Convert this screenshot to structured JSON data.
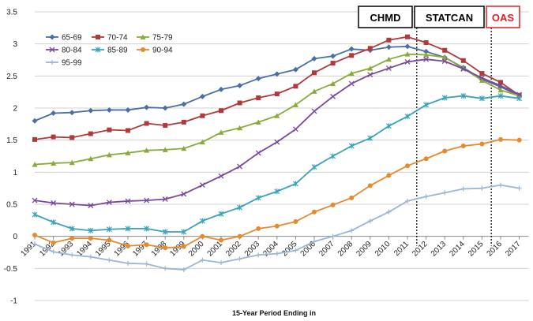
{
  "chart_data": {
    "type": "line",
    "title": "",
    "xlabel": "15-Year Period Ending in",
    "ylabel": "",
    "ylim": [
      -1,
      3.5
    ],
    "yticks": [
      -1,
      -0.5,
      0,
      0.5,
      1,
      1.5,
      2,
      2.5,
      3,
      3.5
    ],
    "ytick_labels": [
      "-1",
      "-0.5",
      "0",
      "0.5",
      "1",
      "1.5",
      "2",
      "2.5",
      "3",
      "3.5"
    ],
    "categories": [
      "1991",
      "1992",
      "1993",
      "1994",
      "1995",
      "1996",
      "1997",
      "1998",
      "1999",
      "2000",
      "2001",
      "2002",
      "2003",
      "2004",
      "2005",
      "2006",
      "2007",
      "2008",
      "2009",
      "2010",
      "2011",
      "2012",
      "2013",
      "2014",
      "2015",
      "2016",
      "2017"
    ],
    "grid": true,
    "legend_position": "top-left",
    "series": [
      {
        "name": "65-69",
        "color": "#4a6fa5",
        "marker": "diamond",
        "values": [
          1.8,
          1.92,
          1.93,
          1.96,
          1.97,
          1.97,
          2.01,
          2.0,
          2.06,
          2.18,
          2.29,
          2.35,
          2.46,
          2.53,
          2.6,
          2.77,
          2.81,
          2.92,
          2.9,
          2.95,
          2.96,
          2.88,
          2.79,
          2.63,
          2.45,
          2.33,
          2.19
        ]
      },
      {
        "name": "70-74",
        "color": "#b03a3a",
        "marker": "square",
        "values": [
          1.51,
          1.55,
          1.54,
          1.6,
          1.66,
          1.65,
          1.76,
          1.73,
          1.78,
          1.88,
          1.96,
          2.08,
          2.16,
          2.22,
          2.34,
          2.55,
          2.7,
          2.82,
          2.93,
          3.06,
          3.11,
          3.02,
          2.9,
          2.74,
          2.54,
          2.4,
          2.2
        ]
      },
      {
        "name": "75-79",
        "color": "#8aab3c",
        "marker": "triangle",
        "values": [
          1.12,
          1.14,
          1.15,
          1.21,
          1.27,
          1.3,
          1.34,
          1.35,
          1.37,
          1.47,
          1.62,
          1.69,
          1.78,
          1.88,
          2.05,
          2.26,
          2.38,
          2.54,
          2.62,
          2.76,
          2.84,
          2.83,
          2.79,
          2.62,
          2.43,
          2.28,
          2.19
        ]
      },
      {
        "name": "80-84",
        "color": "#7a4a9a",
        "marker": "x",
        "values": [
          0.56,
          0.52,
          0.5,
          0.48,
          0.53,
          0.55,
          0.56,
          0.58,
          0.66,
          0.8,
          0.94,
          1.09,
          1.3,
          1.47,
          1.67,
          1.95,
          2.18,
          2.38,
          2.52,
          2.62,
          2.72,
          2.76,
          2.73,
          2.61,
          2.47,
          2.35,
          2.21
        ]
      },
      {
        "name": "85-89",
        "color": "#3aa3b8",
        "marker": "asterisk",
        "values": [
          0.34,
          0.22,
          0.12,
          0.09,
          0.11,
          0.12,
          0.12,
          0.07,
          0.07,
          0.24,
          0.35,
          0.45,
          0.6,
          0.7,
          0.82,
          1.08,
          1.25,
          1.41,
          1.53,
          1.72,
          1.87,
          2.05,
          2.16,
          2.19,
          2.15,
          2.19,
          2.15
        ]
      },
      {
        "name": "90-94",
        "color": "#e68a2e",
        "marker": "circle",
        "values": [
          0.02,
          -0.1,
          -0.03,
          -0.03,
          -0.06,
          -0.15,
          -0.13,
          -0.18,
          -0.16,
          0.0,
          -0.06,
          0.0,
          0.12,
          0.16,
          0.23,
          0.38,
          0.49,
          0.6,
          0.79,
          0.95,
          1.1,
          1.21,
          1.33,
          1.41,
          1.44,
          1.51,
          1.5
        ]
      },
      {
        "name": "95-99",
        "color": "#9db5d6",
        "marker": "plus",
        "values": [
          -0.12,
          -0.24,
          -0.29,
          -0.32,
          -0.37,
          -0.42,
          -0.43,
          -0.5,
          -0.52,
          -0.37,
          -0.41,
          -0.35,
          -0.29,
          -0.27,
          -0.22,
          -0.08,
          0.0,
          0.09,
          0.24,
          0.38,
          0.55,
          0.62,
          0.68,
          0.74,
          0.75,
          0.8,
          0.75
        ]
      }
    ],
    "source_boxes": [
      {
        "label": "CHMD",
        "color": "#000000"
      },
      {
        "label": "STATCAN",
        "color": "#000000"
      },
      {
        "label": "OAS",
        "color": "#e02020"
      }
    ],
    "dividers": [
      {
        "between": [
          "2011",
          "2012"
        ]
      },
      {
        "between": [
          "2015",
          "2016"
        ]
      }
    ]
  }
}
